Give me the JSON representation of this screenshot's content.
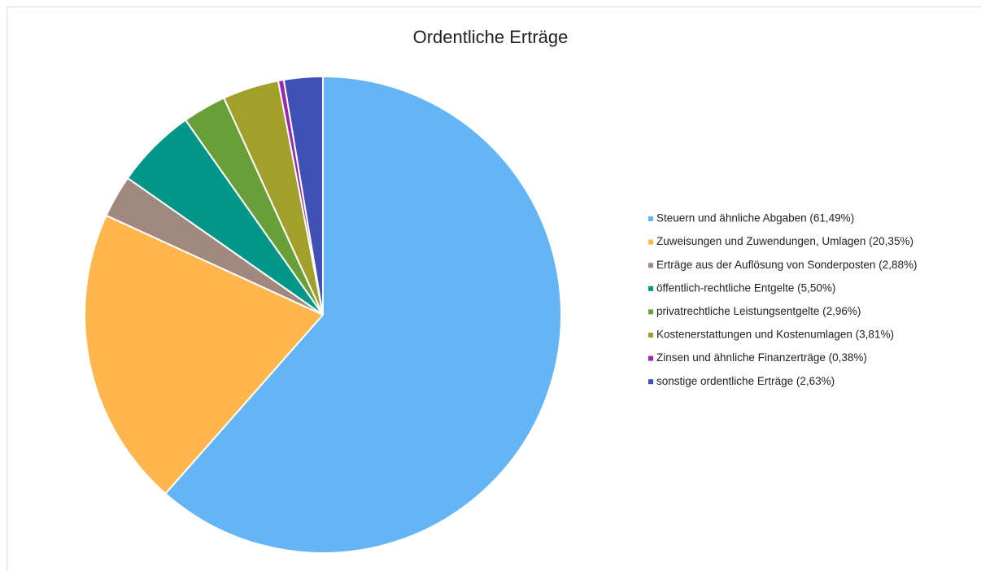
{
  "chart_data": {
    "type": "pie",
    "title": "Ordentliche Erträge",
    "categories": [
      "Steuern und ähnliche Abgaben (61,49%)",
      "Zuweisungen und Zuwendungen, Umlagen (20,35%)",
      "Erträge aus der Auflösung von Sonderposten (2,88%)",
      "öffentlich-rechtliche Entgelte (5,50%)",
      "privatrechtliche Leistungsentgelte (2,96%)",
      "Kostenerstattungen und Kostenumlagen (3,81%)",
      "Zinsen und ähnliche Finanzerträge (0,38%)",
      "sonstige ordentliche Erträge (2,63%)"
    ],
    "values": [
      61.49,
      20.35,
      2.88,
      5.5,
      2.96,
      3.81,
      0.38,
      2.63
    ],
    "colors": [
      "#64b5f6",
      "#ffb74d",
      "#a1887f",
      "#009688",
      "#689f38",
      "#a0a02a",
      "#9c27b0",
      "#3f51b5"
    ],
    "legend": "right"
  }
}
